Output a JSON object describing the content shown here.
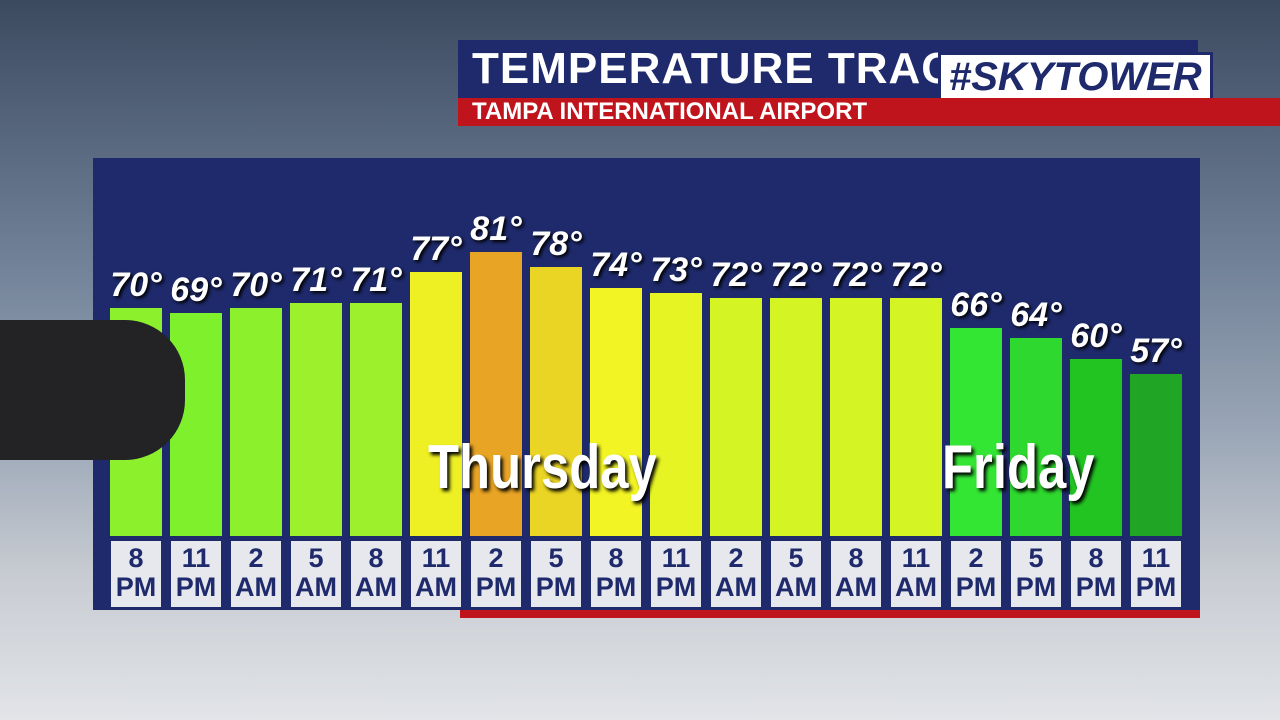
{
  "chart_data": {
    "type": "bar",
    "title": "TEMPERATURE TRACK",
    "subtitle": "TAMPA INTERNATIONAL AIRPORT",
    "brand": "#SKYTOWER",
    "categories": [
      "8 PM",
      "11 PM",
      "2 AM",
      "5 AM",
      "8 AM",
      "11 AM",
      "2 PM",
      "5 PM",
      "8 PM",
      "11 PM",
      "2 AM",
      "5 AM",
      "8 AM",
      "11 AM",
      "2 PM",
      "5 PM",
      "8 PM",
      "11 PM"
    ],
    "values": [
      70,
      69,
      70,
      71,
      71,
      77,
      81,
      78,
      74,
      73,
      72,
      72,
      72,
      72,
      66,
      64,
      60,
      57
    ],
    "value_labels": [
      "70°",
      "69°",
      "70°",
      "71°",
      "71°",
      "77°",
      "81°",
      "78°",
      "74°",
      "73°",
      "72°",
      "72°",
      "72°",
      "72°",
      "66°",
      "64°",
      "60°",
      "57°"
    ],
    "colors": [
      "#8cf02c",
      "#7ff02c",
      "#8cf02c",
      "#9cf02c",
      "#9cf02c",
      "#eef024",
      "#e8a424",
      "#ead424",
      "#f2f424",
      "#e6f424",
      "#d4f424",
      "#d4f424",
      "#d4f424",
      "#d4f424",
      "#34e634",
      "#2ed82e",
      "#22c422",
      "#20a624"
    ],
    "annotations": [
      "Thursday",
      "Friday"
    ]
  }
}
